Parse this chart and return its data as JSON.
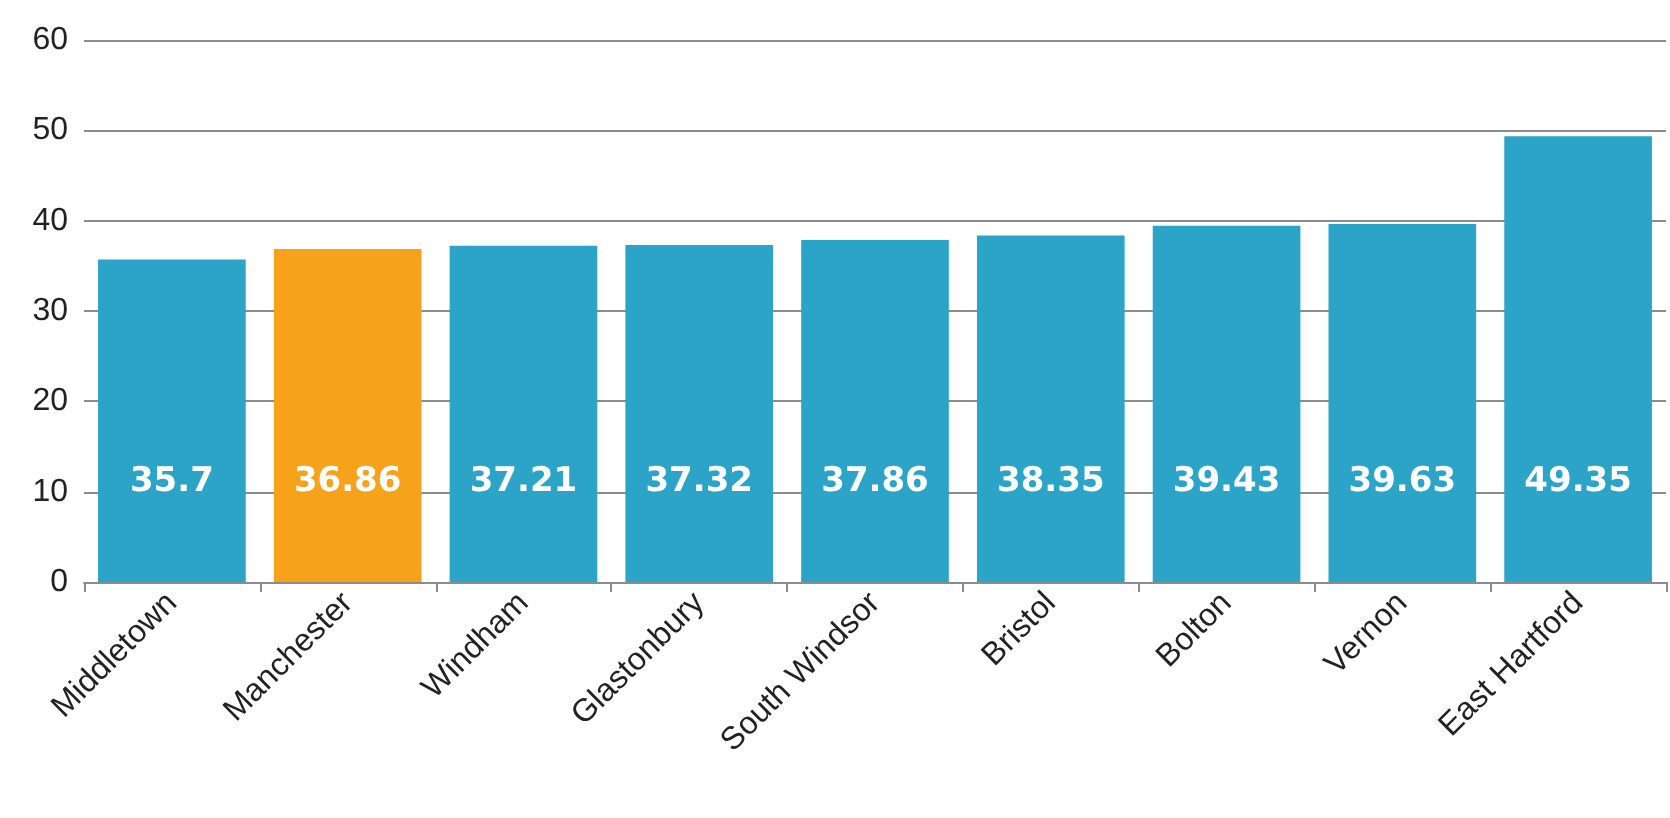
{
  "chart_data": {
    "type": "bar",
    "categories": [
      "Middletown",
      "Manchester",
      "Windham",
      "Glastonbury",
      "South Windsor",
      "Bristol",
      "Bolton",
      "Vernon",
      "East Hartford"
    ],
    "values": [
      35.7,
      36.86,
      37.21,
      37.32,
      37.86,
      38.35,
      39.43,
      39.63,
      49.35
    ],
    "colors": [
      "#2ba4c8",
      "#f7a21b",
      "#2ba4c8",
      "#2ba4c8",
      "#2ba4c8",
      "#2ba4c8",
      "#2ba4c8",
      "#2ba4c8",
      "#2ba4c8"
    ],
    "ylim": [
      0,
      60
    ],
    "yticks": [
      0,
      10,
      20,
      30,
      40,
      50,
      60
    ],
    "grid": "y",
    "data_labels": true
  }
}
